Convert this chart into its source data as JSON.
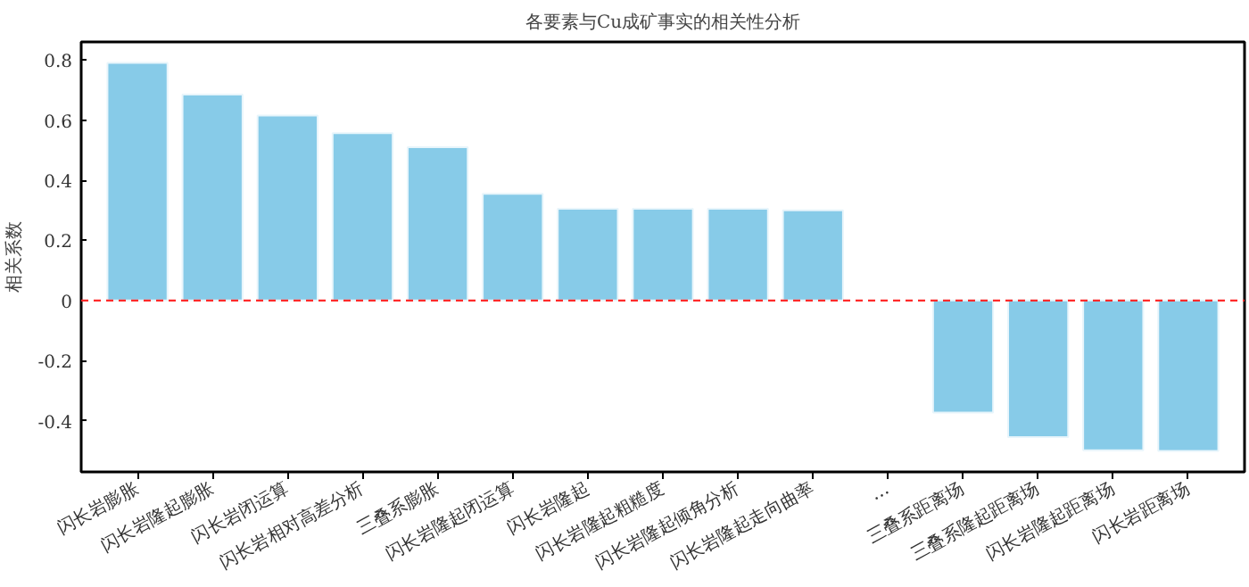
{
  "chart_data": {
    "type": "bar",
    "title": "各要素与Cu成矿事实的相关性分析",
    "ylabel": "相关系数",
    "categories": [
      "闪长岩膨胀",
      "闪长岩隆起膨胀",
      "闪长岩闭运算",
      "闪长岩相对高差分析",
      "三叠系膨胀",
      "闪长岩隆起闭运算",
      "闪长岩隆起",
      "闪长岩隆起粗糙度",
      "闪长岩隆起倾角分析",
      "闪长岩隆起走向曲率",
      "…",
      "三叠系距离场",
      "三叠系隆起距离场",
      "闪长岩隆起距离场",
      "闪长岩距离场"
    ],
    "values": [
      0.79,
      0.685,
      0.615,
      0.557,
      0.51,
      0.355,
      0.305,
      0.305,
      0.305,
      0.3,
      null,
      -0.373,
      -0.454,
      -0.498,
      -0.5
    ],
    "color": "#87cbe8",
    "ylim": [
      -0.57,
      0.86
    ],
    "yticks": [
      -0.4,
      -0.2,
      0,
      0.2,
      0.4,
      0.6,
      0.8
    ],
    "grid": false,
    "ref_lines": [
      {
        "axis": "y",
        "value": 0,
        "color": "#ff2a2a",
        "line_style": "dashed"
      }
    ]
  }
}
